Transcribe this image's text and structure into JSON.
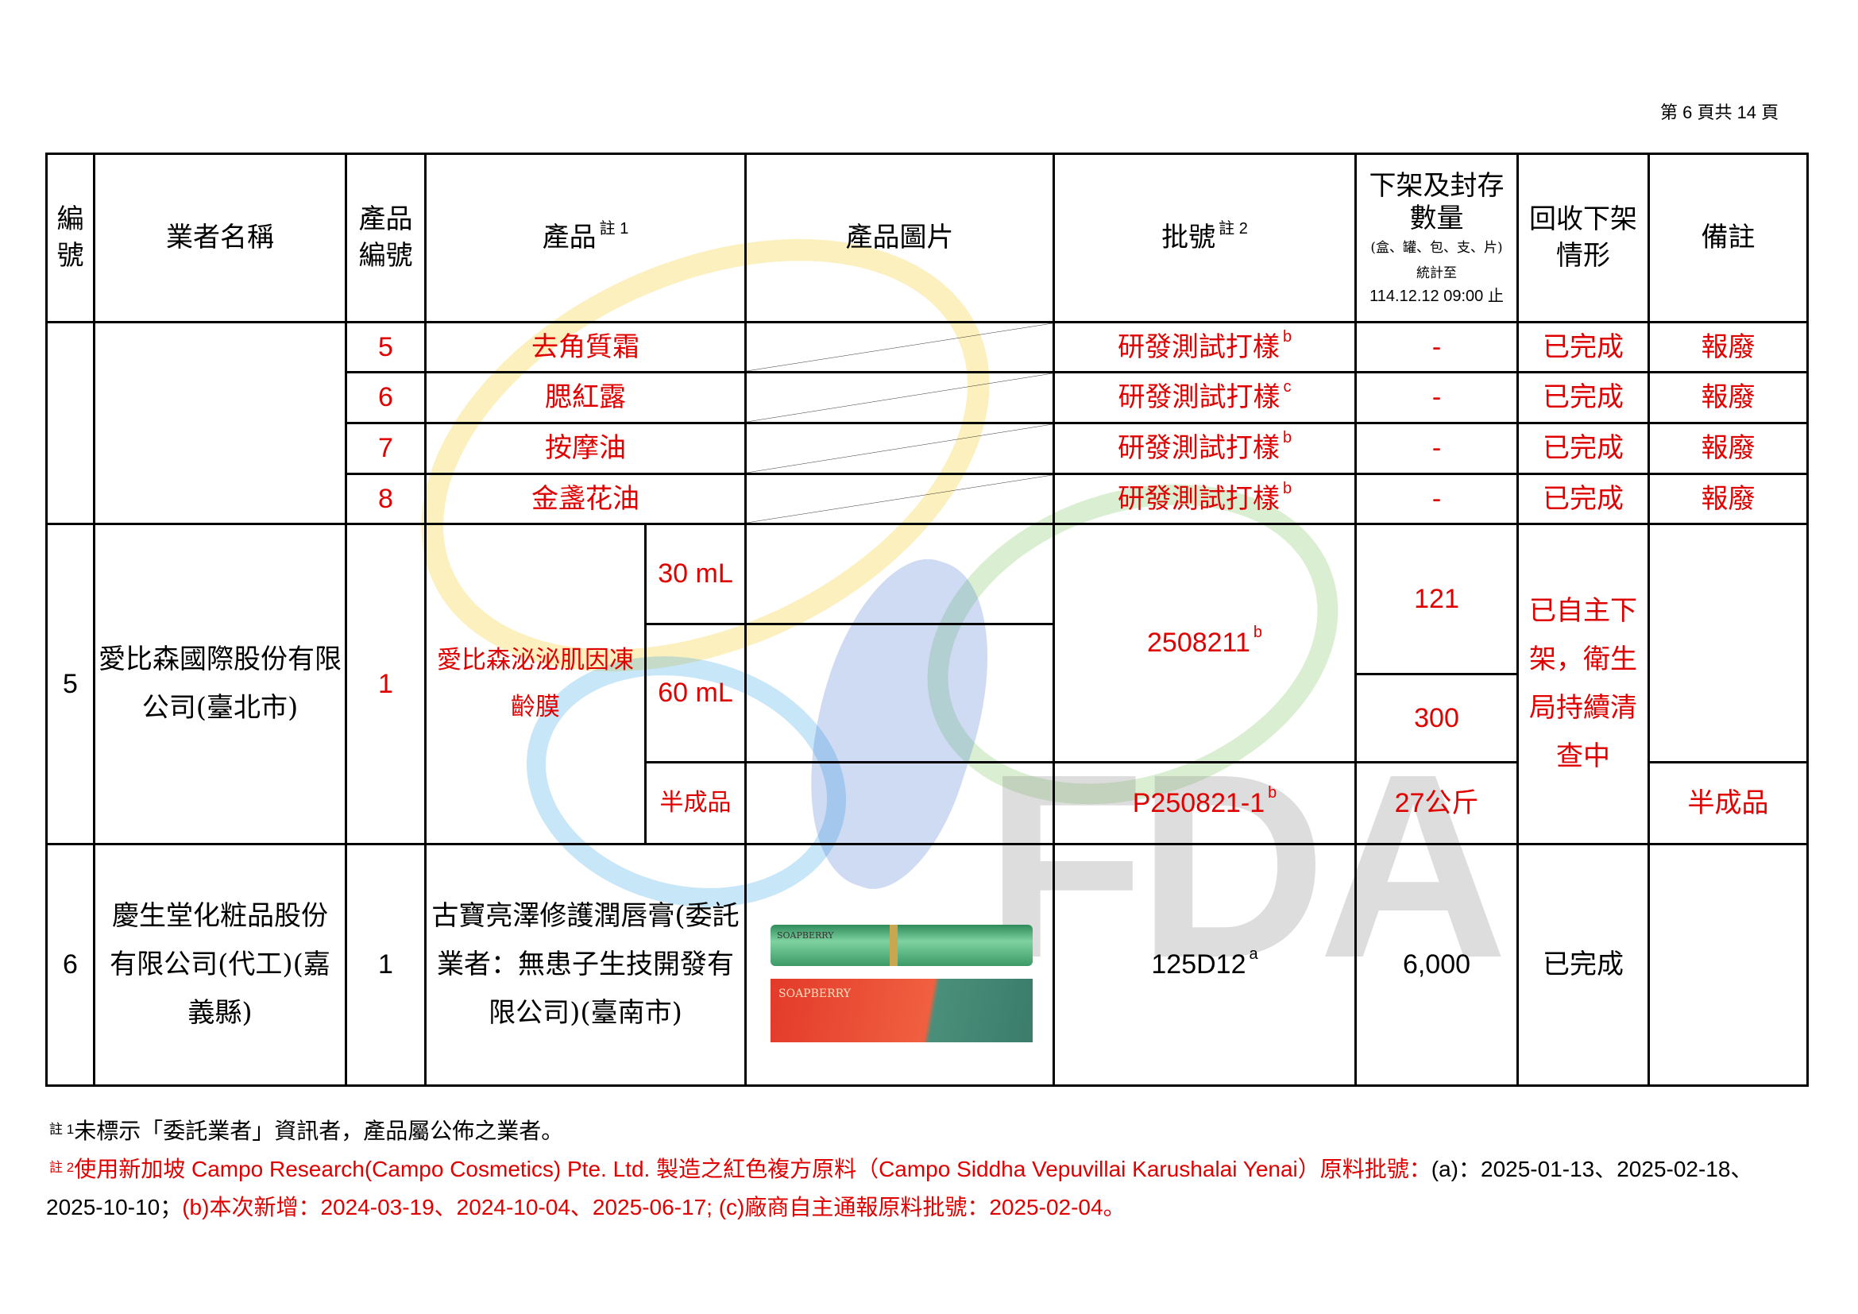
{
  "page_number": "第 6 頁共 14 頁",
  "header": {
    "no": "編號",
    "company": "業者名稱",
    "product_no": "產品編號",
    "product": "產品",
    "product_note": "註 1",
    "image": "產品圖片",
    "batch": "批號",
    "batch_note": "註 2",
    "qty_title": "下架及封存數量",
    "qty_units": "(盒、罐、包、支、片)",
    "qty_as_of": "統計至",
    "qty_date": "114.12.12 09:00 止",
    "status": "回收下架情形",
    "remarks": "備註"
  },
  "rows_group_4": [
    {
      "product_no": "5",
      "product": "去角質霜",
      "batch": "研發測試打樣",
      "batch_sup": "b",
      "qty": "-",
      "status": "已完成",
      "remarks": "報廢"
    },
    {
      "product_no": "6",
      "product": "腮紅露",
      "batch": "研發測試打樣",
      "batch_sup": "c",
      "qty": "-",
      "status": "已完成",
      "remarks": "報廢"
    },
    {
      "product_no": "7",
      "product": "按摩油",
      "batch": "研發測試打樣",
      "batch_sup": "b",
      "qty": "-",
      "status": "已完成",
      "remarks": "報廢"
    },
    {
      "product_no": "8",
      "product": "金盞花油",
      "batch": "研發測試打樣",
      "batch_sup": "b",
      "qty": "-",
      "status": "已完成",
      "remarks": "報廢"
    }
  ],
  "row5": {
    "no": "5",
    "company": "愛比森國際股份有限公司(臺北市)",
    "product_no": "1",
    "product": "愛比森泌泌肌因凍齡膜",
    "size_a": "30 mL",
    "size_b": "60 mL",
    "size_c": "半成品",
    "batch_ab": "2508211",
    "batch_ab_sup": "b",
    "batch_c": "P250821-1",
    "batch_c_sup": "b",
    "qty_a": "121",
    "qty_b": "300",
    "qty_c": "27公斤",
    "status": "已自主下架，衛生局持續清查中",
    "remarks_c": "半成品"
  },
  "row6": {
    "no": "6",
    "company": "慶生堂化粧品股份有限公司(代工)(嘉義縣)",
    "product_no": "1",
    "product": "古寶亮澤修護潤唇膏(委託業者：無患子生技開發有限公司)(臺南市)",
    "image_brand": "SOAPBERRY",
    "batch": "125D12",
    "batch_sup": "a",
    "qty": "6,000",
    "status": "已完成",
    "remarks": ""
  },
  "watermark": "FDA",
  "notes": {
    "note1_mark": "註 1",
    "note1": "未標示「委託業者」資訊者，產品屬公佈之業者。",
    "note2_mark": "註 2",
    "note2_red1": "使用新加坡 Campo Research(Campo Cosmetics) Pte. Ltd. 製造之紅色複方原料（Campo Siddha Vepuvillai Karushalai Yenai）原料批號：",
    "note2_black": "(a)：2025-01-13、2025-02-18、2025-10-10；",
    "note2_red2": "(b)本次新增：2024-03-19、2024-10-04、2025-06-17; (c)廠商自主通報原料批號：2025-02-04。"
  },
  "colors": {
    "red": "#e00000",
    "black": "#000000"
  }
}
